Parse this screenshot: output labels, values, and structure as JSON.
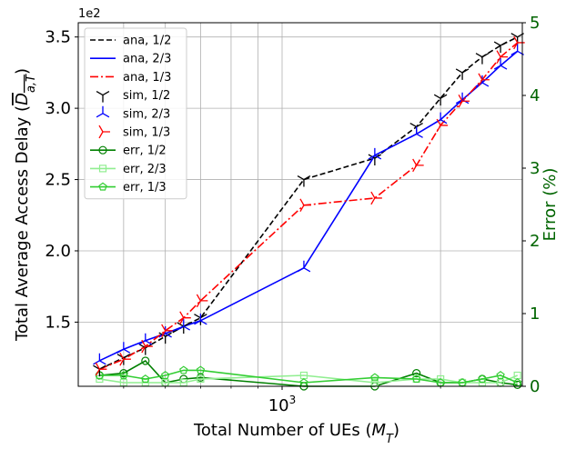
{
  "chart_data": {
    "type": "line",
    "x_scale": "log",
    "grid": true,
    "legend_position": "upper-left",
    "xlabel": "Total Number of UEs ($M_T$)",
    "ylabel_left": "Total Average Access Delay ($\\overline{D_{a,T}}$)",
    "ylabel_right": "Error (%)",
    "y_offset_label": "1e2",
    "xlim": [
      410,
      2860
    ],
    "ylim_left": [
      1.05,
      3.6
    ],
    "ylim_right": [
      0,
      5
    ],
    "x_ticks": [
      1000
    ],
    "x_tick_labels": [
      "10^3"
    ],
    "y_ticks_left": [
      1.5,
      2.0,
      2.5,
      3.0,
      3.5
    ],
    "y_tick_labels_left": [
      "1.5",
      "2.0",
      "2.5",
      "3.0",
      "3.5"
    ],
    "y_ticks_right": [
      0,
      1,
      2,
      3,
      4,
      5
    ],
    "y_tick_labels_right": [
      "0",
      "1",
      "2",
      "3",
      "4",
      "5"
    ],
    "colors": {
      "black": "#000000",
      "blue": "#0000ff",
      "red": "#ff0000",
      "green": "#008000",
      "lightgreen": "#90ee90",
      "limegreen": "#32cd32",
      "right_axis": "#006400"
    },
    "x": [
      450,
      500,
      550,
      600,
      650,
      700,
      1100,
      1500,
      1800,
      2000,
      2200,
      2400,
      2600,
      2800
    ],
    "series": [
      {
        "name": "ana, 1/2",
        "axis": "left",
        "color": "black",
        "style": "dashed",
        "values": [
          1.17,
          1.25,
          1.32,
          1.4,
          1.47,
          1.53,
          2.5,
          2.65,
          2.87,
          3.07,
          3.25,
          3.36,
          3.44,
          3.5
        ]
      },
      {
        "name": "ana, 2/3",
        "axis": "left",
        "color": "blue",
        "style": "solid",
        "values": [
          1.23,
          1.31,
          1.37,
          1.42,
          1.47,
          1.51,
          1.88,
          2.67,
          2.82,
          2.92,
          3.06,
          3.18,
          3.3,
          3.4
        ]
      },
      {
        "name": "ana, 1/3",
        "axis": "left",
        "color": "red",
        "style": "dashdot",
        "values": [
          1.17,
          1.24,
          1.33,
          1.44,
          1.53,
          1.65,
          2.32,
          2.37,
          2.6,
          2.88,
          3.05,
          3.2,
          3.36,
          3.46
        ]
      },
      {
        "name": "sim, 1/2",
        "axis": "left",
        "color": "black",
        "style": "marker-tri",
        "values": [
          1.17,
          1.25,
          1.32,
          1.4,
          1.47,
          1.53,
          2.5,
          2.65,
          2.87,
          3.07,
          3.25,
          3.36,
          3.44,
          3.5
        ]
      },
      {
        "name": "sim, 2/3",
        "axis": "left",
        "color": "blue",
        "style": "marker-tri",
        "values": [
          1.23,
          1.31,
          1.37,
          1.42,
          1.47,
          1.51,
          1.88,
          2.67,
          2.82,
          2.92,
          3.06,
          3.18,
          3.3,
          3.4
        ]
      },
      {
        "name": "sim, 1/3",
        "axis": "left",
        "color": "red",
        "style": "marker-tri",
        "values": [
          1.17,
          1.24,
          1.33,
          1.44,
          1.53,
          1.65,
          2.32,
          2.37,
          2.6,
          2.88,
          3.05,
          3.2,
          3.36,
          3.46
        ]
      },
      {
        "name": "err, 1/2",
        "axis": "right",
        "color": "green",
        "style": "circle",
        "values": [
          0.15,
          0.18,
          0.35,
          0.05,
          0.1,
          0.12,
          0.0,
          0.0,
          0.18,
          0.05,
          0.05,
          0.1,
          0.05,
          0.02
        ]
      },
      {
        "name": "err, 2/3",
        "axis": "right",
        "color": "lightgreen",
        "style": "square",
        "values": [
          0.1,
          0.05,
          0.05,
          0.05,
          0.05,
          0.1,
          0.15,
          0.05,
          0.1,
          0.1,
          0.05,
          0.05,
          0.05,
          0.15
        ]
      },
      {
        "name": "err, 1/3",
        "axis": "right",
        "color": "limegreen",
        "style": "pentagon",
        "values": [
          0.15,
          0.15,
          0.1,
          0.15,
          0.22,
          0.22,
          0.05,
          0.12,
          0.1,
          0.05,
          0.05,
          0.1,
          0.15,
          0.05
        ]
      }
    ]
  }
}
